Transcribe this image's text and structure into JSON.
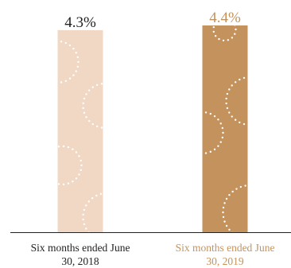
{
  "chart_data": {
    "type": "bar",
    "title": "",
    "xlabel": "",
    "ylabel": "",
    "categories": [
      [
        "Six months ended June",
        "30, 2018"
      ],
      [
        "Six months ended June",
        "30, 2019"
      ]
    ],
    "values": [
      4.3,
      4.4
    ],
    "value_labels": [
      "4.3%",
      "4.4%"
    ],
    "unit": "%",
    "ylim": [
      0,
      4.4
    ],
    "grid": false,
    "bar_colors": [
      "#F0D8C5",
      "#C4935D"
    ],
    "label_colors": [
      "#222222",
      "#C4935D"
    ],
    "dot_color": "#ffffff"
  }
}
